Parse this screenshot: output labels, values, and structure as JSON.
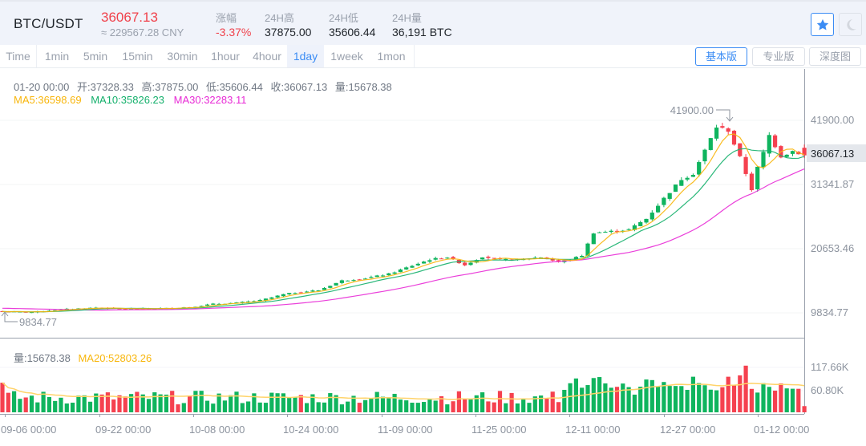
{
  "header": {
    "pair": "BTC/USDT",
    "last_price": "36067.13",
    "cny_price": "≈ 229567.28 CNY",
    "stats": [
      {
        "label": "涨幅",
        "value": "-3.37%",
        "color": "red"
      },
      {
        "label": "24H高",
        "value": "37875.00"
      },
      {
        "label": "24H低",
        "value": "35606.44"
      },
      {
        "label": "24H量",
        "value": "36,191 BTC"
      }
    ],
    "favorite_icon": "star-icon",
    "theme_icon": "moon-icon"
  },
  "toolbar": {
    "timeframes": [
      "Time",
      "1min",
      "5min",
      "15min",
      "30min",
      "1hour",
      "4hour",
      "1day",
      "1week",
      "1mon"
    ],
    "active_timeframe": "1day",
    "views": [
      "基本版",
      "专业版",
      "深度图"
    ],
    "active_view": "基本版"
  },
  "ohlc_info": {
    "date": "01-20 00:00",
    "open": "开:37328.33",
    "high": "高:37875.00",
    "low": "低:35606.44",
    "close": "收:36067.13",
    "volume": "量:15678.38",
    "ma5": "MA5:36598.69",
    "ma10": "MA10:35826.23",
    "ma30": "MA30:32283.11"
  },
  "volume_info": {
    "volume": "量:15678.38",
    "ma20": "MA20:52803.26"
  },
  "colors": {
    "up": "#0fb45e",
    "down": "#f5414f",
    "ma5": "#f8b60c",
    "ma10": "#14b06c",
    "ma30": "#e82ad6",
    "ma20": "#ffd36a",
    "accent": "#3b8cf4"
  },
  "chart_data": {
    "type": "candlestick",
    "title": "BTC/USDT 1day",
    "y_axis_ticks": [
      "41900.00",
      "31341.87",
      "20653.46",
      "9834.77"
    ],
    "current_price_label": "36067.13",
    "max_marker": "41900.00",
    "min_marker": "9834.77",
    "volume_axis_ticks": [
      "117.66K",
      "60.80K"
    ],
    "x_axis_ticks": [
      "09-06 00:00",
      "09-22 00:00",
      "10-08 00:00",
      "10-24 00:00",
      "11-09 00:00",
      "11-25 00:00",
      "12-11 00:00",
      "12-27 00:00",
      "01-12 00:00"
    ],
    "close_keypoints": [
      [
        0,
        10050
      ],
      [
        5,
        9950
      ],
      [
        10,
        10400
      ],
      [
        16,
        10700
      ],
      [
        20,
        10500
      ],
      [
        24,
        10500
      ],
      [
        28,
        10600
      ],
      [
        32,
        10800
      ],
      [
        36,
        11300
      ],
      [
        40,
        11500
      ],
      [
        44,
        11900
      ],
      [
        48,
        12900
      ],
      [
        50,
        13200
      ],
      [
        54,
        13600
      ],
      [
        58,
        15200
      ],
      [
        62,
        15600
      ],
      [
        66,
        16300
      ],
      [
        70,
        17700
      ],
      [
        73,
        18700
      ],
      [
        76,
        19100
      ],
      [
        79,
        17800
      ],
      [
        82,
        19200
      ],
      [
        85,
        18700
      ],
      [
        88,
        18700
      ],
      [
        92,
        19100
      ],
      [
        95,
        18300
      ],
      [
        97,
        18700
      ],
      [
        99,
        19400
      ],
      [
        101,
        23200
      ],
      [
        104,
        23400
      ],
      [
        107,
        23700
      ],
      [
        110,
        25500
      ],
      [
        113,
        28900
      ],
      [
        116,
        32100
      ],
      [
        118,
        33000
      ],
      [
        120,
        36900
      ],
      [
        122,
        40800
      ],
      [
        124,
        40200
      ],
      [
        126,
        35700
      ],
      [
        128,
        30400
      ],
      [
        129,
        34000
      ],
      [
        130,
        36500
      ],
      [
        131,
        39400
      ],
      [
        133,
        35900
      ],
      [
        135,
        36800
      ],
      [
        137,
        36067
      ]
    ],
    "ma_values_latest": {
      "MA5": 36598.69,
      "MA10": 35826.23,
      "MA30": 32283.11,
      "MA20_volume": 52803.26
    },
    "latest_candle": {
      "date": "01-20",
      "open": 37328.33,
      "high": 37875.0,
      "low": 35606.44,
      "close": 36067.13,
      "volume": 15678.38
    }
  }
}
